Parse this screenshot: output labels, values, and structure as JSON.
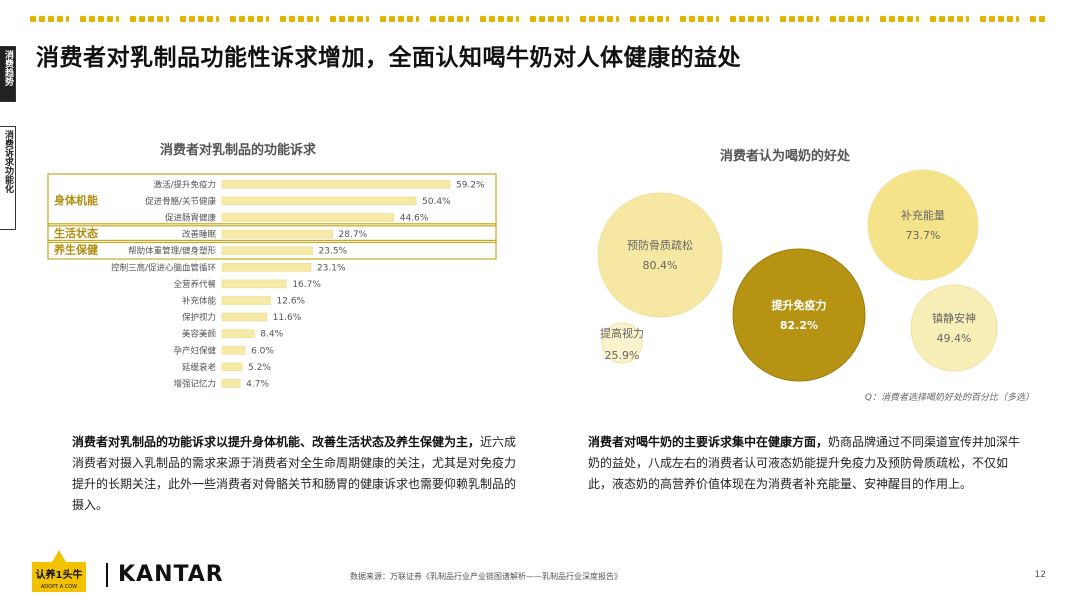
{
  "side_tabs": [
    "消费趋势",
    "消费诉求功能化"
  ],
  "page_title": "消费者对乳制品功能性诉求增加，全面认知喝牛奶对人体健康的益处",
  "chart_data": [
    {
      "type": "bar",
      "title": "消费者对乳制品的功能诉求",
      "categories": [
        "激活/提升免疫力",
        "促进骨骼/关节健康",
        "促进肠胃健康",
        "改善睡眠",
        "帮助体重管理/健身塑形",
        "控制三高/促进心脑血管循环",
        "全营养代餐",
        "补充体能",
        "保护视力",
        "美容美颜",
        "孕产妇保健",
        "延缓衰老",
        "增强记忆力"
      ],
      "values": [
        59.2,
        50.4,
        44.6,
        28.7,
        23.5,
        23.1,
        16.7,
        12.6,
        11.6,
        8.4,
        6.0,
        5.2,
        4.7
      ],
      "value_labels": [
        "59.2%",
        "50.4%",
        "44.6%",
        "28.7%",
        "23.5%",
        "23.1%",
        "16.7%",
        "12.6%",
        "11.6%",
        "8.4%",
        "6.0%",
        "5.2%",
        "4.7%"
      ],
      "groups": [
        {
          "label": "身体机能",
          "members": [
            0,
            1,
            2
          ]
        },
        {
          "label": "生活状态",
          "members": [
            3
          ]
        },
        {
          "label": "养生保健",
          "members": [
            4
          ]
        }
      ],
      "bar_color": "#f7e9a6",
      "group_color": "#c6a91e"
    },
    {
      "type": "bubble",
      "title": "消费者认为喝奶的好处",
      "items": [
        {
          "label": "预防骨质疏松",
          "value": 80.4,
          "value_label": "80.4%",
          "color": "#f6e8a2",
          "text_color": "#666666"
        },
        {
          "label": "补充能量",
          "value": 73.7,
          "value_label": "73.7%",
          "color": "#f5e38a",
          "text_color": "#666666"
        },
        {
          "label": "提升免疫力",
          "value": 82.2,
          "value_label": "82.2%",
          "color": "#b69313",
          "text_color": "#ffffff"
        },
        {
          "label": "镇静安神",
          "value": 49.4,
          "value_label": "49.4%",
          "color": "#f8eeb8",
          "text_color": "#666666"
        },
        {
          "label": "提高视力",
          "value": 25.9,
          "value_label": "25.9%",
          "color": "#faf3cc",
          "text_color": "#666666"
        }
      ],
      "note": "Q：消费者选择喝奶好处的百分比（多选）"
    }
  ],
  "para_left_bold": "消费者对乳制品的功能诉求以提升身体机能、改善生活状态及养生保健为主，",
  "para_left_rest": "近六成消费者对摄入乳制品的需求来源于消费者对全生命周期健康的关注，尤其是对免疫力提升的长期关注，此外一些消费者对骨骼关节和肠胃的健康诉求也需要仰赖乳制品的摄入。",
  "para_right_bold": "消费者对喝牛奶的主要诉求集中在健康方面，",
  "para_right_rest": "奶商品牌通过不同渠道宣传并加深牛奶的益处，八成左右的消费者认可液态奶能提升免疫力及预防骨质疏松，不仅如此，液态奶的高营养价值体现在为消费者补充能量、安神醒目的作用上。",
  "logo_text_cn": "认养1头牛",
  "logo_text_en": "ADOPT A COW",
  "kantar": "KANTAR",
  "source": "数据来源：万联证券《乳制品行业产业链图谱解析——乳制品行业深度报告》",
  "page_number": "12",
  "accent_color": "#e2b500"
}
